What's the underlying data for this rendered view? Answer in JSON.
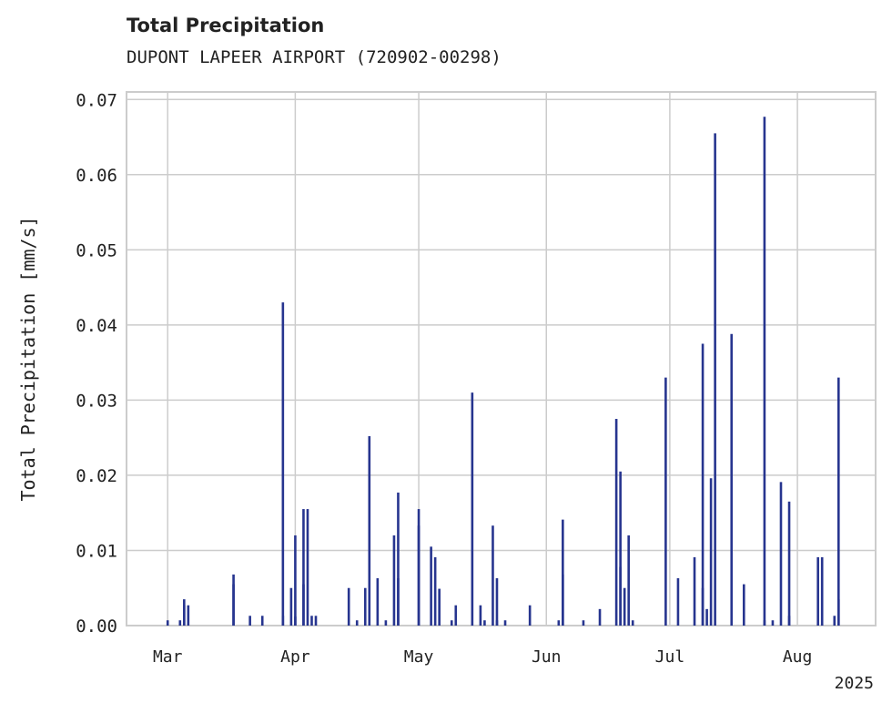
{
  "title": "Total Precipitation",
  "subtitle": "DUPONT LAPEER AIRPORT (720902-00298)",
  "chart_data": {
    "type": "bar",
    "title": "Total Precipitation",
    "xlabel": "",
    "ylabel": "Total Precipitation [mm/s]",
    "ylim": [
      0,
      0.071
    ],
    "xlim": [
      "2025-02-19",
      "2025-08-20"
    ],
    "grid": true,
    "bar_color": "#27358f",
    "x_ticks": [
      {
        "date": "2025-03-01",
        "label": "Mar"
      },
      {
        "date": "2025-04-01",
        "label": "Apr"
      },
      {
        "date": "2025-05-01",
        "label": "May"
      },
      {
        "date": "2025-06-01",
        "label": "Jun"
      },
      {
        "date": "2025-07-01",
        "label": "Jul"
      },
      {
        "date": "2025-08-01",
        "label": "Aug"
      }
    ],
    "x_offset_label": "2025",
    "y_ticks": [
      {
        "value": 0.0,
        "label": "0.00"
      },
      {
        "value": 0.01,
        "label": "0.01"
      },
      {
        "value": 0.02,
        "label": "0.02"
      },
      {
        "value": 0.03,
        "label": "0.03"
      },
      {
        "value": 0.04,
        "label": "0.04"
      },
      {
        "value": 0.05,
        "label": "0.05"
      },
      {
        "value": 0.06,
        "label": "0.06"
      },
      {
        "value": 0.07,
        "label": "0.07"
      }
    ],
    "series": [
      {
        "x": [
          "2025-02-29",
          "2025-03-04",
          "2025-03-05",
          "2025-03-05",
          "2025-03-06",
          "2025-03-17",
          "2025-03-17",
          "2025-03-21",
          "2025-03-24",
          "2025-03-29",
          "2025-03-29",
          "2025-03-31",
          "2025-04-01",
          "2025-04-01",
          "2025-04-03",
          "2025-04-03",
          "2025-04-04",
          "2025-04-05",
          "2025-04-06",
          "2025-04-14",
          "2025-04-16",
          "2025-04-18",
          "2025-04-19",
          "2025-04-21",
          "2025-04-23",
          "2025-04-25",
          "2025-04-26",
          "2025-04-26",
          "2025-05-01",
          "2025-05-01",
          "2025-05-04",
          "2025-05-05",
          "2025-05-06",
          "2025-05-09",
          "2025-05-10",
          "2025-05-14",
          "2025-05-16",
          "2025-05-17",
          "2025-05-19",
          "2025-05-20",
          "2025-05-20",
          "2025-05-22",
          "2025-05-28",
          "2025-06-04",
          "2025-06-05",
          "2025-06-05",
          "2025-06-10",
          "2025-06-14",
          "2025-06-18",
          "2025-06-19",
          "2025-06-19",
          "2025-06-20",
          "2025-06-21",
          "2025-06-22",
          "2025-06-30",
          "2025-07-03",
          "2025-07-07",
          "2025-07-09",
          "2025-07-09",
          "2025-07-10",
          "2025-07-11",
          "2025-07-12",
          "2025-07-16",
          "2025-07-19",
          "2025-07-24",
          "2025-07-24",
          "2025-07-26",
          "2025-07-28",
          "2025-07-30",
          "2025-07-30",
          "2025-08-06",
          "2025-08-07",
          "2025-08-10",
          "2025-08-11",
          "2025-08-11"
        ],
        "values": [
          0.0007,
          0.0007,
          0.0027,
          0.0035,
          0.0027,
          0.0055,
          0.0068,
          0.0013,
          0.0013,
          0.0013,
          0.043,
          0.005,
          0.0012,
          0.012,
          0.0055,
          0.0155,
          0.0155,
          0.0013,
          0.0013,
          0.005,
          0.0007,
          0.005,
          0.0252,
          0.0063,
          0.0007,
          0.012,
          0.0177,
          0.0063,
          0.0155,
          0.0133,
          0.0105,
          0.0091,
          0.0049,
          0.0007,
          0.0027,
          0.031,
          0.0027,
          0.0007,
          0.0133,
          0.0063,
          0.0007,
          0.0007,
          0.0027,
          0.0007,
          0.0068,
          0.0141,
          0.0007,
          0.0022,
          0.0275,
          0.0205,
          0.0078,
          0.005,
          0.012,
          0.0007,
          0.033,
          0.0063,
          0.0091,
          0.0375,
          0.005,
          0.0022,
          0.0196,
          0.0655,
          0.0388,
          0.0055,
          0.0677,
          0.0007,
          0.0007,
          0.0191,
          0.0165,
          0.0013,
          0.0091,
          0.0091,
          0.0013,
          0.033,
          0.0035
        ]
      }
    ]
  }
}
